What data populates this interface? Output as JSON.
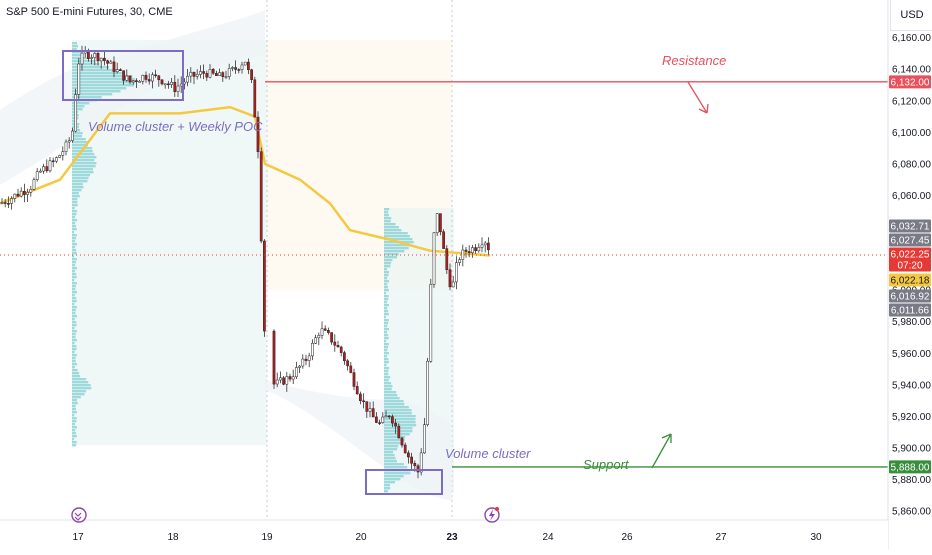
{
  "header": {
    "title": "S&P 500 E-mini Futures, 30, CME",
    "currency": "USD"
  },
  "colors": {
    "up": "#2e7d32",
    "down": "#b71c1c",
    "poc": "#f5c842",
    "resistance": "#e8505b",
    "support": "#388e3c",
    "cluster": "#7e6bc4",
    "profile": "#8fd3d6",
    "last": "#e53935"
  },
  "chart_data": {
    "type": "candlestick",
    "symbol": "S&P 500 E-mini Futures",
    "timeframe": "30",
    "exchange": "CME",
    "ylim": [
      5855,
      6175
    ],
    "y_ticks": [
      5860,
      5880,
      5900,
      5920,
      5940,
      5960,
      5980,
      6000,
      6020,
      6040,
      6060,
      6080,
      6100,
      6120,
      6140,
      6160
    ],
    "x_ticks": [
      "17",
      "18",
      "19",
      "20",
      "23",
      "24",
      "26",
      "27",
      "30"
    ],
    "price_path": [
      [
        0,
        6055
      ],
      [
        10,
        6058
      ],
      [
        20,
        6062
      ],
      [
        30,
        6065
      ],
      [
        40,
        6075
      ],
      [
        55,
        6082
      ],
      [
        65,
        6090
      ],
      [
        72,
        6098
      ],
      [
        78,
        6144
      ],
      [
        85,
        6150
      ],
      [
        100,
        6148
      ],
      [
        115,
        6140
      ],
      [
        130,
        6132
      ],
      [
        145,
        6136
      ],
      [
        160,
        6134
      ],
      [
        175,
        6128
      ],
      [
        190,
        6135
      ],
      [
        205,
        6138
      ],
      [
        220,
        6135
      ],
      [
        235,
        6140
      ],
      [
        245,
        6146
      ],
      [
        252,
        6130
      ],
      [
        258,
        6090
      ],
      [
        262,
        6020
      ],
      [
        266,
        5945
      ],
      [
        275,
        5940
      ],
      [
        290,
        5945
      ],
      [
        305,
        5955
      ],
      [
        320,
        5975
      ],
      [
        330,
        5970
      ],
      [
        342,
        5960
      ],
      [
        352,
        5945
      ],
      [
        362,
        5930
      ],
      [
        372,
        5920
      ],
      [
        380,
        5915
      ],
      [
        390,
        5922
      ],
      [
        398,
        5910
      ],
      [
        406,
        5898
      ],
      [
        412,
        5890
      ],
      [
        418,
        5885
      ],
      [
        424,
        5910
      ],
      [
        428,
        5960
      ],
      [
        432,
        6020
      ],
      [
        436,
        6050
      ],
      [
        440,
        6040
      ],
      [
        446,
        6015
      ],
      [
        452,
        6000
      ],
      [
        458,
        6020
      ],
      [
        466,
        6025
      ],
      [
        475,
        6027
      ],
      [
        484,
        6033
      ],
      [
        490,
        6025
      ]
    ],
    "weekly_poc_path": [
      [
        0,
        6055
      ],
      [
        60,
        6070
      ],
      [
        110,
        6112
      ],
      [
        180,
        6112
      ],
      [
        230,
        6116
      ],
      [
        255,
        6110
      ],
      [
        265,
        6080
      ],
      [
        300,
        6070
      ],
      [
        330,
        6055
      ],
      [
        350,
        6038
      ],
      [
        390,
        6032
      ],
      [
        430,
        6025
      ],
      [
        490,
        6022
      ]
    ],
    "levels": [
      {
        "name": "Resistance",
        "value": 6132.0
      },
      {
        "name": "Support",
        "value": 5888.0
      }
    ],
    "price_labels": [
      {
        "value": "6,032.71",
        "y": 6032.71,
        "bg": "#787b86"
      },
      {
        "value": "6,027.45",
        "y": 6027.45,
        "bg": "#787b86"
      },
      {
        "value": "6,022.25",
        "y": 6022.25,
        "bg": "#e53935",
        "sub": "07:20"
      },
      {
        "value": "6,022.18",
        "y": 6022.18,
        "bg": "#f5c842"
      },
      {
        "value": "6,016.92",
        "y": 6016.92,
        "bg": "#787b86"
      },
      {
        "value": "6,011.66",
        "y": 6011.66,
        "bg": "#787b86"
      }
    ],
    "annotations": {
      "volume_cluster_weekly_poc": "Volume cluster + Weekly POC",
      "volume_cluster": "Volume cluster",
      "resistance": "Resistance",
      "support": "Support"
    }
  },
  "level_labels": {
    "resistance": "6,132.00",
    "support": "5,888.00"
  }
}
